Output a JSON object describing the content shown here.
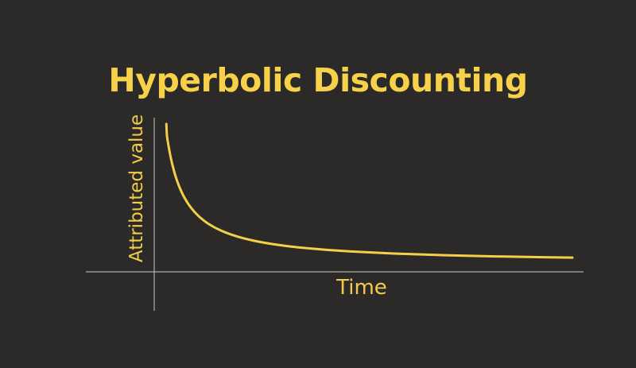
{
  "chart_data": {
    "type": "line",
    "title": "Hyperbolic Discounting",
    "xlabel": "Time",
    "ylabel": "Attributed value",
    "grid": false,
    "legend": "none",
    "series": [
      {
        "x": [
          0.04,
          0.06,
          0.1,
          0.15,
          0.2,
          0.3,
          0.4,
          0.55,
          0.75,
          1,
          1.3,
          1.7,
          2.2,
          2.8,
          3.5,
          4.3,
          5.2,
          6.2,
          7.3,
          8.5,
          9.7,
          11,
          12.5,
          14,
          16
        ],
        "y": [
          1,
          0.9216,
          0.8696,
          0.8163,
          0.7692,
          0.6897,
          0.625,
          0.5479,
          0.4706,
          0.4,
          0.339,
          0.2817,
          0.2326,
          0.1923,
          0.16,
          0.1342,
          0.1136,
          0.0971,
          0.0837,
          0.0727,
          0.064,
          0.0567,
          0.05,
          0.0448,
          0.0394
        ]
      }
    ],
    "colors": {
      "background": "#2b2a29",
      "accent": "#f8d14a",
      "axis": "#c9c9c9"
    }
  }
}
